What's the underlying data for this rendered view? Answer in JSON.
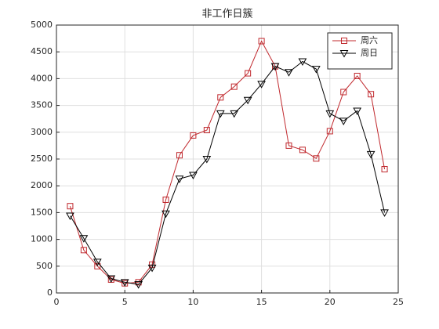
{
  "chart_data": {
    "type": "line",
    "title": "非工作日簇",
    "x": [
      1,
      2,
      3,
      4,
      5,
      6,
      7,
      8,
      9,
      10,
      11,
      12,
      13,
      14,
      15,
      16,
      17,
      18,
      19,
      20,
      21,
      22,
      23,
      24
    ],
    "series": [
      {
        "name": "周六",
        "color": "#c0282d",
        "marker": "square",
        "values": [
          1620,
          800,
          500,
          250,
          180,
          200,
          530,
          1740,
          2570,
          2940,
          3040,
          3650,
          3850,
          4100,
          4700,
          4230,
          2750,
          2670,
          2510,
          3020,
          3750,
          4050,
          3710,
          2310
        ]
      },
      {
        "name": "周日",
        "color": "#000000",
        "marker": "triangle-down",
        "values": [
          1440,
          1020,
          580,
          270,
          200,
          160,
          470,
          1480,
          2130,
          2200,
          2500,
          3350,
          3350,
          3600,
          3900,
          4230,
          4120,
          4320,
          4180,
          3350,
          3210,
          3400,
          2590,
          1500
        ]
      }
    ],
    "xlim": [
      0,
      25
    ],
    "xticks": [
      0,
      5,
      10,
      15,
      20,
      25
    ],
    "ylim": [
      0,
      5000
    ],
    "yticks": [
      0,
      500,
      1000,
      1500,
      2000,
      2500,
      3000,
      3500,
      4000,
      4500,
      5000
    ],
    "grid": true,
    "legend": "upper right"
  }
}
